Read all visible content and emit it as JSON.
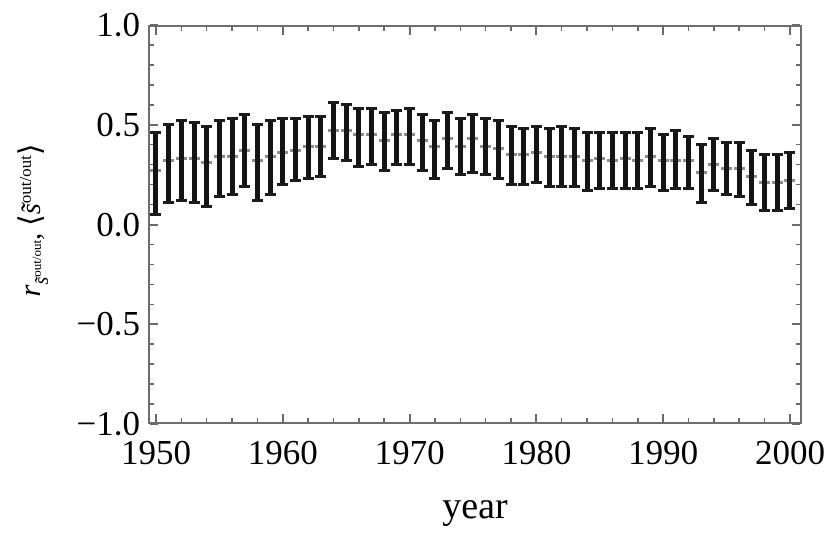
{
  "chart_data": {
    "type": "errorbar",
    "title": "",
    "xlabel": "year",
    "ylabel": "r_{s~^(out/out)}, <s~^(out/out)>",
    "ylabel_parts": {
      "r": "r",
      "sub_base": "s̃",
      "sub_sup": "out/out",
      "separator": ", ",
      "langle": "⟨",
      "avg_base": "s̃",
      "avg_sup": "out/out",
      "rangle": "⟩"
    },
    "grid": false,
    "frame": true,
    "legend": null,
    "x_plot_range": [
      1949.37,
      2000.95
    ],
    "y_plot_range": [
      -1.0,
      1.0
    ],
    "x_axis": {
      "major_values": [
        1950,
        1960,
        1970,
        1980,
        1990,
        2000
      ],
      "tick_labels": [
        "1950",
        "1960",
        "1970",
        "1980",
        "1990",
        "2000"
      ],
      "minor_step": 2
    },
    "y_axis": {
      "major_values": [
        1.0,
        0.5,
        0.0,
        -0.5,
        -1.0
      ],
      "tick_labels": [
        "1.0",
        "0.5",
        "0.0",
        "−0.5",
        "−1.0"
      ],
      "minor_step": 0.1
    },
    "series_color": "#141414",
    "mean_marker_color": "#8c8c8c",
    "years": [
      1950,
      1951,
      1952,
      1953,
      1954,
      1955,
      1956,
      1957,
      1958,
      1959,
      1960,
      1961,
      1962,
      1963,
      1964,
      1965,
      1966,
      1967,
      1968,
      1969,
      1970,
      1971,
      1972,
      1973,
      1974,
      1975,
      1976,
      1977,
      1978,
      1979,
      1980,
      1981,
      1982,
      1983,
      1984,
      1985,
      1986,
      1987,
      1988,
      1989,
      1990,
      1991,
      1992,
      1993,
      1994,
      1995,
      1996,
      1997,
      1998,
      1999,
      2000
    ],
    "mean": [
      0.27,
      0.32,
      0.33,
      0.33,
      0.31,
      0.34,
      0.34,
      0.37,
      0.32,
      0.34,
      0.36,
      0.37,
      0.39,
      0.39,
      0.47,
      0.47,
      0.45,
      0.45,
      0.42,
      0.45,
      0.45,
      0.42,
      0.39,
      0.43,
      0.39,
      0.43,
      0.39,
      0.38,
      0.35,
      0.35,
      0.36,
      0.34,
      0.34,
      0.34,
      0.32,
      0.33,
      0.32,
      0.33,
      0.32,
      0.34,
      0.32,
      0.32,
      0.32,
      0.26,
      0.3,
      0.28,
      0.28,
      0.24,
      0.21,
      0.21,
      0.22
    ],
    "low": [
      0.05,
      0.11,
      0.12,
      0.11,
      0.09,
      0.14,
      0.15,
      0.19,
      0.12,
      0.15,
      0.2,
      0.22,
      0.23,
      0.24,
      0.33,
      0.32,
      0.29,
      0.3,
      0.27,
      0.3,
      0.3,
      0.27,
      0.23,
      0.28,
      0.25,
      0.26,
      0.25,
      0.23,
      0.2,
      0.2,
      0.21,
      0.19,
      0.19,
      0.19,
      0.17,
      0.18,
      0.18,
      0.18,
      0.18,
      0.19,
      0.17,
      0.18,
      0.18,
      0.11,
      0.17,
      0.15,
      0.14,
      0.1,
      0.07,
      0.07,
      0.08
    ],
    "high": [
      0.46,
      0.5,
      0.52,
      0.51,
      0.49,
      0.52,
      0.53,
      0.55,
      0.5,
      0.52,
      0.53,
      0.53,
      0.54,
      0.54,
      0.61,
      0.6,
      0.58,
      0.58,
      0.56,
      0.57,
      0.58,
      0.55,
      0.52,
      0.56,
      0.53,
      0.55,
      0.53,
      0.52,
      0.49,
      0.48,
      0.49,
      0.48,
      0.49,
      0.48,
      0.46,
      0.46,
      0.46,
      0.46,
      0.46,
      0.48,
      0.45,
      0.47,
      0.44,
      0.4,
      0.43,
      0.41,
      0.41,
      0.37,
      0.35,
      0.35,
      0.36
    ]
  }
}
